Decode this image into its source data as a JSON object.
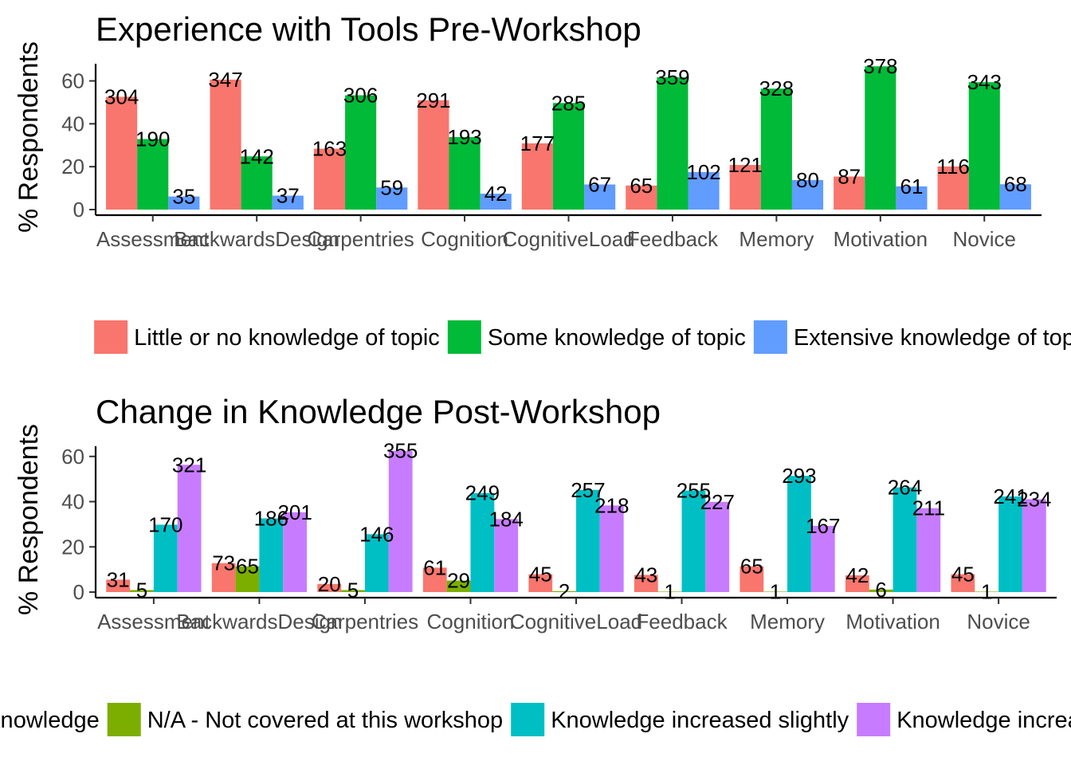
{
  "chart_data": [
    {
      "type": "bar",
      "title": "Experience with Tools Pre-Workshop",
      "xlabel": "",
      "ylabel": "% Respondents",
      "ylim": [
        0,
        68
      ],
      "yticks": [
        0,
        20,
        40,
        60
      ],
      "grid": false,
      "legend_position": "bottom",
      "categories": [
        "Assessment",
        "BackwardsDesign",
        "Carpentries",
        "Cognition",
        "CognitiveLoad",
        "Feedback",
        "Memory",
        "Motivation",
        "Novice"
      ],
      "series": [
        {
          "name": "Little or no knowledge of topic",
          "color": "#F8766D",
          "values": [
            52.6,
            60.6,
            28.4,
            51.0,
            30.9,
            11.2,
            20.8,
            15.4,
            20.1
          ],
          "labels": [
            "304",
            "347",
            "163",
            "291",
            "177",
            "65",
            "121",
            "87",
            "116"
          ]
        },
        {
          "name": "Some knowledge of topic",
          "color": "#00BA38",
          "values": [
            32.9,
            24.8,
            53.3,
            33.8,
            49.7,
            61.7,
            56.4,
            66.8,
            59.4
          ],
          "labels": [
            "190",
            "142",
            "306",
            "193",
            "285",
            "359",
            "328",
            "378",
            "343"
          ]
        },
        {
          "name": "Extensive knowledge of topic",
          "color": "#619CFF",
          "values": [
            6.1,
            6.5,
            10.3,
            7.4,
            11.7,
            17.5,
            13.8,
            10.8,
            11.8
          ],
          "labels": [
            "35",
            "37",
            "59",
            "42",
            "67",
            "102",
            "80",
            "61",
            "68"
          ]
        }
      ]
    },
    {
      "type": "bar",
      "title": "Change in Knowledge Post-Workshop",
      "xlabel": "",
      "ylabel": "% Respondents",
      "ylim": [
        0,
        64.5
      ],
      "yticks": [
        0,
        20,
        40,
        60
      ],
      "grid": false,
      "legend_position": "bottom",
      "categories": [
        "Assessment",
        "BackwardsDesign",
        "Carpentries",
        "Cognition",
        "CognitiveLoad",
        "Feedback",
        "Memory",
        "Motivation",
        "Novice"
      ],
      "series": [
        {
          "name": "No change in my knowledge",
          "color": "#F8766D",
          "values": [
            5.5,
            12.8,
            3.6,
            10.8,
            7.9,
            7.6,
            11.4,
            7.4,
            7.9
          ],
          "labels": [
            "31",
            "73",
            "20",
            "61",
            "45",
            "43",
            "65",
            "42",
            "45"
          ]
        },
        {
          "name": "N/A - Not covered at this workshop",
          "color": "#7CAE00",
          "values": [
            0.9,
            11.4,
            0.9,
            5.1,
            0.4,
            0.2,
            0.2,
            1.1,
            0.2
          ],
          "labels": [
            "5",
            "65",
            "5",
            "29",
            "2",
            "1",
            "1",
            "6",
            "1"
          ]
        },
        {
          "name": "Knowledge increased slightly",
          "color": "#00BFC4",
          "values": [
            29.8,
            32.6,
            25.6,
            43.8,
            45.2,
            44.9,
            51.4,
            46.3,
            42.3
          ],
          "labels": [
            "170",
            "186",
            "146",
            "249",
            "257",
            "255",
            "293",
            "264",
            "241"
          ]
        },
        {
          "name": "Knowledge increased greatly",
          "color": "#C77CFF",
          "values": [
            56.3,
            35.3,
            62.5,
            32.3,
            38.3,
            39.9,
            29.3,
            37.1,
            41.1
          ],
          "labels": [
            "321",
            "201",
            "355",
            "184",
            "218",
            "227",
            "167",
            "211",
            "234"
          ]
        }
      ]
    }
  ]
}
